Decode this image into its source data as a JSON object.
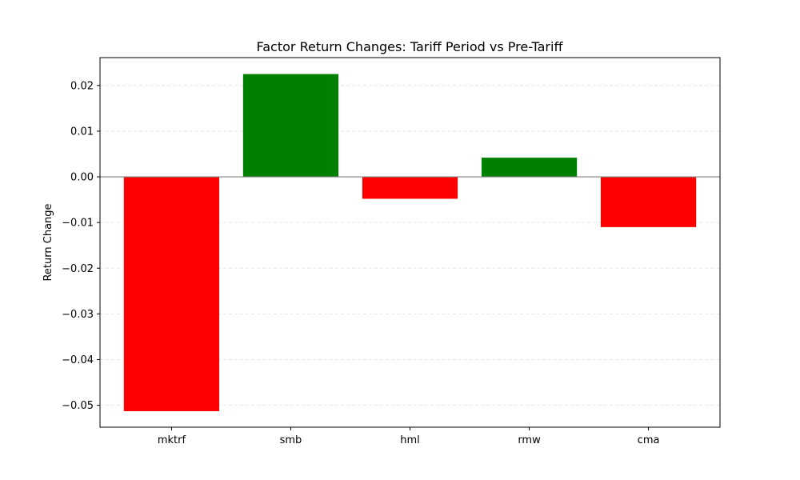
{
  "chart_data": {
    "type": "bar",
    "title": "Factor Return Changes: Tariff Period vs Pre-Tariff",
    "xlabel": "",
    "ylabel": "Return Change",
    "categories": [
      "mktrf",
      "smb",
      "hml",
      "rmw",
      "cma"
    ],
    "values": [
      -0.0513,
      0.0225,
      -0.0048,
      0.0042,
      -0.011
    ],
    "ylim": [
      -0.0548,
      0.0261
    ],
    "yticks": [
      0.02,
      0.01,
      0.0,
      -0.01,
      -0.02,
      -0.03,
      -0.04,
      -0.05
    ],
    "ytick_labels": [
      "0.02",
      "0.01",
      "0.00",
      "−0.01",
      "−0.02",
      "−0.03",
      "−0.04",
      "−0.05"
    ],
    "grid": true,
    "zero_line": true,
    "colors": {
      "positive": "#008000",
      "negative": "#ff0000",
      "grid": "#cccccc",
      "zero_line": "#808080",
      "axes": "#000000"
    }
  }
}
